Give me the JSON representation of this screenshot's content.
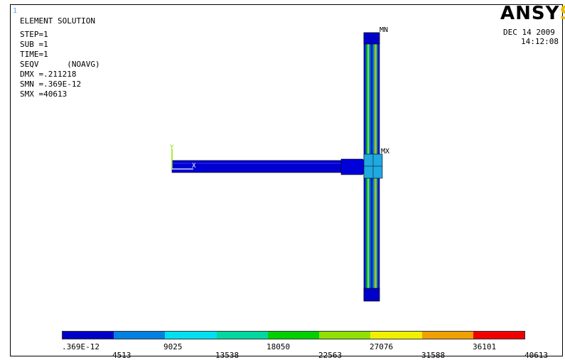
{
  "window_number": "1",
  "info": {
    "title": "ELEMENT SOLUTION",
    "lines": [
      "STEP=1",
      "SUB =1",
      "TIME=1",
      "SEQV      (NOAVG)",
      "DMX =.211218",
      "SMN =.369E-12",
      "SMX =40613"
    ]
  },
  "logo": {
    "main": "ANSY",
    "tail": "S"
  },
  "date": "DEC 14 2009",
  "time": "14:12:08",
  "markers": {
    "mn": "MN",
    "mx": "MX",
    "axis_y": "Y",
    "axis_x": "X"
  },
  "legend": {
    "colors": [
      "#0000c8",
      "#0080e0",
      "#00e0f0",
      "#00d8a0",
      "#00d000",
      "#90e000",
      "#f0f000",
      "#f0a000",
      "#f00000"
    ],
    "labels": [
      ".369E-12",
      "4513",
      "9025",
      "13538",
      "18050",
      "22563",
      "27076",
      "31588",
      "36101",
      "40613"
    ]
  }
}
